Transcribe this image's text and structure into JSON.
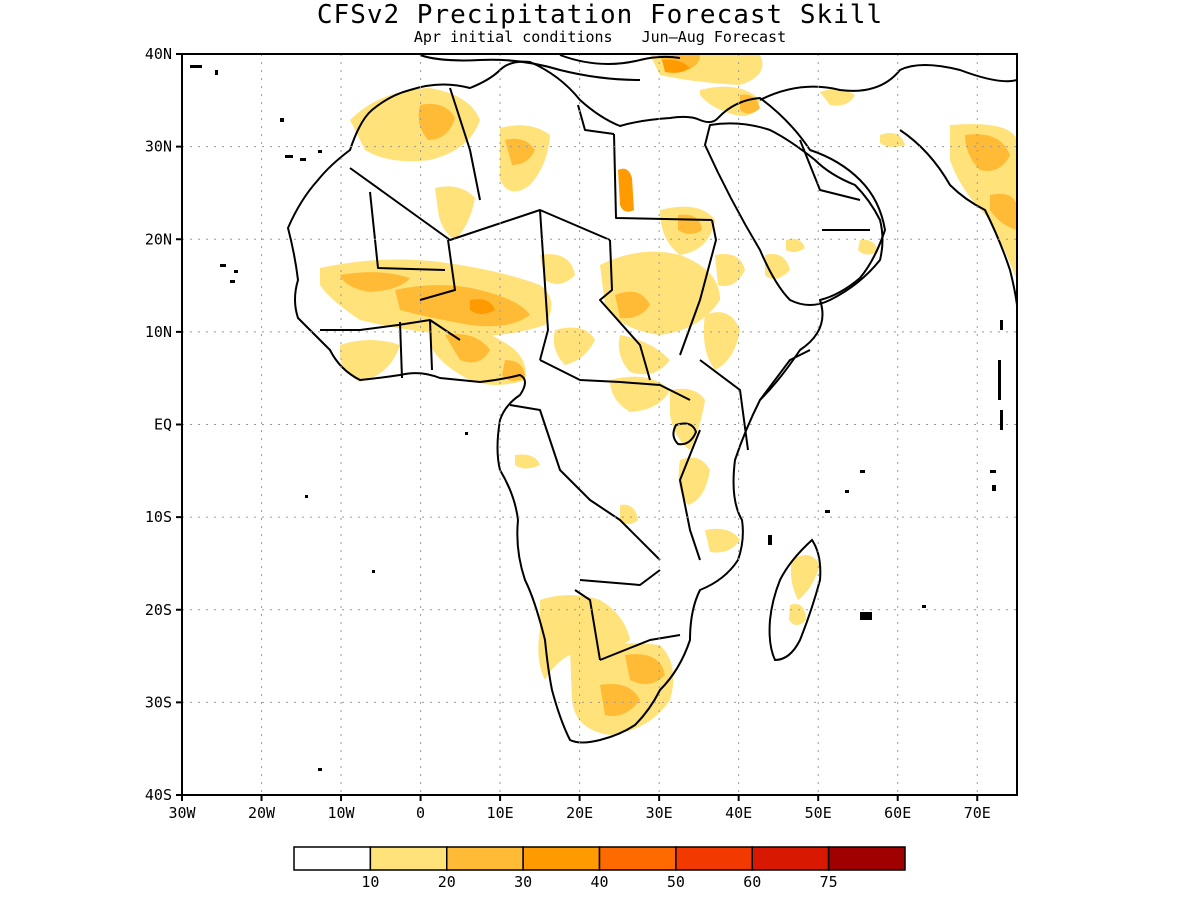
{
  "title": "CFSv2 Precipitation Forecast Skill",
  "subtitle": {
    "initial": "Apr initial conditions",
    "forecast": "Jun–Aug Forecast"
  },
  "axes": {
    "lat_labels": [
      "40N",
      "30N",
      "20N",
      "10N",
      "EQ",
      "10S",
      "20S",
      "30S",
      "40S"
    ],
    "lon_labels": [
      "30W",
      "20W",
      "10W",
      "0",
      "10E",
      "20E",
      "30E",
      "40E",
      "50E",
      "60E",
      "70E"
    ],
    "lat_range": [
      -40,
      40
    ],
    "lon_range": [
      -30,
      75
    ],
    "grid": "dotted"
  },
  "colorbar": {
    "colors": [
      "#ffffff",
      "#ffe27a",
      "#ffbb35",
      "#ff9a00",
      "#ff6a00",
      "#f23a00",
      "#d81800",
      "#a00000"
    ],
    "labels": [
      "10",
      "20",
      "30",
      "40",
      "50",
      "60",
      "75"
    ]
  }
}
